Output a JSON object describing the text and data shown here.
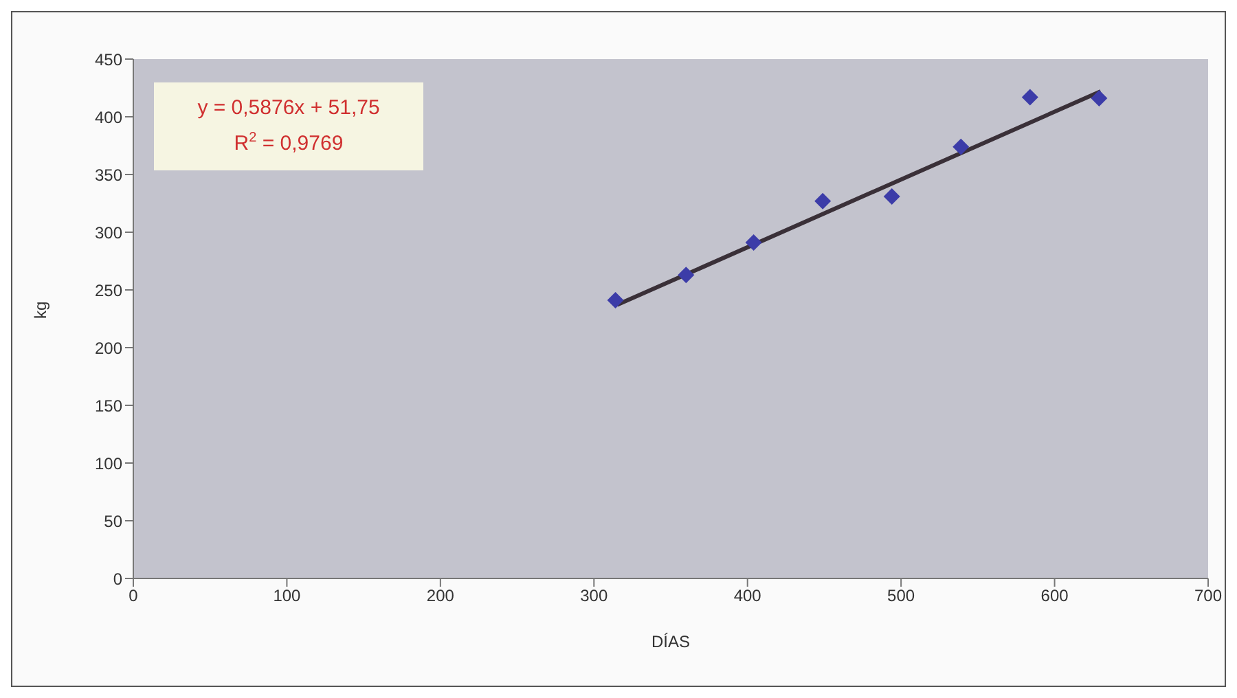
{
  "chart_data": {
    "type": "scatter",
    "xlabel": "DÍAS",
    "ylabel": "kg",
    "xlim": [
      0,
      700
    ],
    "xticks": [
      0,
      100,
      200,
      300,
      400,
      500,
      600,
      700
    ],
    "ylim": [
      0,
      450
    ],
    "yticks": [
      0,
      50,
      100,
      150,
      200,
      250,
      300,
      350,
      400,
      450
    ],
    "grid": false,
    "legend": false,
    "marker": "diamond",
    "annotations": [
      "y = 0,5876x + 51,75",
      "R$^{2}$ = 0,9769"
    ],
    "series": [
      {
        "color": "#3c3ca8",
        "x": [
          314,
          360,
          404,
          449,
          494,
          539,
          584,
          629
        ],
        "values": [
          241,
          263,
          291,
          327,
          331,
          374,
          417,
          416
        ]
      },
      {
        "type": "line",
        "color": "#3a3038",
        "marker": "none",
        "line_style": "solid",
        "x": [
          315,
          630
        ],
        "values": [
          237,
          422
        ]
      }
    ]
  }
}
